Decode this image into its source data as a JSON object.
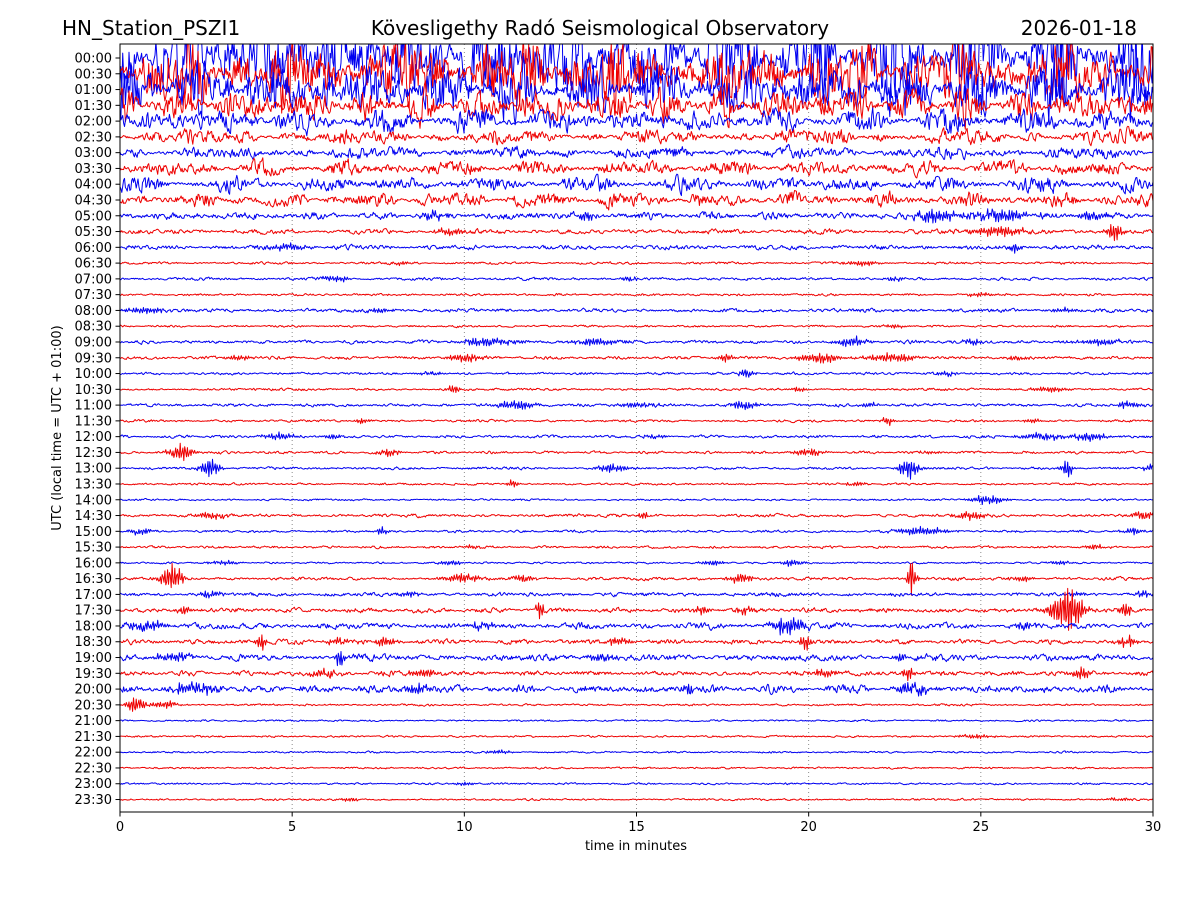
{
  "header": {
    "station_code": "HN_Station_PSZI1",
    "observatory": "Kövesligethy Radó Seismological Observatory",
    "date": "2026-01-18"
  },
  "axes": {
    "xlabel": "time in minutes",
    "ylabel": "UTC (local time = UTC + 01:00)",
    "x_ticks": [
      "0",
      "5",
      "10",
      "15",
      "20",
      "25",
      "30"
    ],
    "x_max_minutes": 30,
    "grid_minutes": [
      5,
      10,
      15,
      20,
      25
    ]
  },
  "colors": {
    "trace_blue": "#0000F0",
    "trace_red": "#EE0000",
    "grid": "#808080",
    "axis": "#000000",
    "background": "#ffffff",
    "text": "#000000"
  },
  "chart_data": {
    "type": "line",
    "subtype": "helicorder-dayplot",
    "minutes_per_line": 30,
    "lines_per_day": 48,
    "x_range_minutes": [
      0,
      30
    ],
    "rows": [
      {
        "time": "00:00",
        "color": "blue",
        "amp": 38,
        "events": []
      },
      {
        "time": "00:30",
        "color": "red",
        "amp": 30,
        "events": []
      },
      {
        "time": "01:00",
        "color": "blue",
        "amp": 24,
        "events": []
      },
      {
        "time": "01:30",
        "color": "red",
        "amp": 14,
        "events": []
      },
      {
        "time": "02:00",
        "color": "blue",
        "amp": 10,
        "events": []
      },
      {
        "time": "02:30",
        "color": "red",
        "amp": 6.5,
        "events": []
      },
      {
        "time": "03:00",
        "color": "blue",
        "amp": 5.0,
        "events": []
      },
      {
        "time": "03:30",
        "color": "red",
        "amp": 6.5,
        "events": []
      },
      {
        "time": "04:00",
        "color": "blue",
        "amp": 6.5,
        "events": []
      },
      {
        "time": "04:30",
        "color": "red",
        "amp": 6.5,
        "events": []
      },
      {
        "time": "05:00",
        "color": "blue",
        "amp": 3.2,
        "events": [
          [
            9,
            4,
            0.3
          ],
          [
            13.5,
            3,
            0.3
          ],
          [
            23.7,
            5,
            0.6
          ],
          [
            25.6,
            5,
            0.8
          ],
          [
            28.2,
            4,
            0.3
          ]
        ]
      },
      {
        "time": "05:30",
        "color": "red",
        "amp": 2.0,
        "events": [
          [
            9.6,
            3,
            0.4
          ],
          [
            25.5,
            4,
            0.8
          ],
          [
            28.9,
            9,
            0.2
          ]
        ]
      },
      {
        "time": "06:00",
        "color": "blue",
        "amp": 1.9,
        "events": [
          [
            4.8,
            3,
            0.5
          ],
          [
            26,
            4,
            0.15
          ]
        ]
      },
      {
        "time": "06:30",
        "color": "red",
        "amp": 1.0,
        "events": [
          [
            8.2,
            1.5,
            0.3
          ],
          [
            21.5,
            2,
            0.5
          ]
        ]
      },
      {
        "time": "07:00",
        "color": "blue",
        "amp": 1.2,
        "events": [
          [
            6.3,
            2.5,
            0.4
          ],
          [
            14.8,
            1.5,
            0.3
          ],
          [
            22.5,
            1.5,
            0.3
          ]
        ]
      },
      {
        "time": "07:30",
        "color": "red",
        "amp": 1.0,
        "events": [
          [
            25,
            1.5,
            0.4
          ]
        ]
      },
      {
        "time": "08:00",
        "color": "blue",
        "amp": 1.5,
        "events": [
          [
            0.8,
            2.5,
            0.6
          ],
          [
            7.5,
            2,
            0.4
          ],
          [
            27.5,
            2,
            0.4
          ]
        ]
      },
      {
        "time": "08:30",
        "color": "red",
        "amp": 0.9,
        "events": [
          [
            22.5,
            1.5,
            0.3
          ]
        ]
      },
      {
        "time": "09:00",
        "color": "blue",
        "amp": 1.4,
        "events": [
          [
            10.8,
            3.5,
            0.8
          ],
          [
            13.8,
            3,
            0.6
          ],
          [
            21.3,
            3.5,
            0.5
          ],
          [
            24.8,
            2.5,
            0.3
          ],
          [
            28.5,
            3,
            0.5
          ]
        ]
      },
      {
        "time": "09:30",
        "color": "red",
        "amp": 1.3,
        "events": [
          [
            3.5,
            2,
            0.4
          ],
          [
            10,
            3,
            0.5
          ],
          [
            17.6,
            3.5,
            0.2
          ],
          [
            20.3,
            4,
            0.6
          ],
          [
            22.4,
            4,
            0.7
          ],
          [
            26,
            2,
            0.3
          ]
        ]
      },
      {
        "time": "10:00",
        "color": "blue",
        "amp": 1.1,
        "events": [
          [
            9,
            1.5,
            0.3
          ],
          [
            18.2,
            3.5,
            0.2
          ],
          [
            24,
            2,
            0.3
          ]
        ]
      },
      {
        "time": "10:30",
        "color": "red",
        "amp": 1.0,
        "events": [
          [
            9.7,
            3.5,
            0.2
          ],
          [
            19.7,
            2.5,
            0.2
          ],
          [
            27,
            2.5,
            0.5
          ]
        ]
      },
      {
        "time": "11:00",
        "color": "blue",
        "amp": 1.3,
        "events": [
          [
            11.5,
            3.5,
            0.55
          ],
          [
            15,
            2,
            0.5
          ],
          [
            18.1,
            4,
            0.35
          ],
          [
            21.8,
            2,
            0.3
          ],
          [
            29.3,
            3,
            0.4
          ]
        ]
      },
      {
        "time": "11:30",
        "color": "red",
        "amp": 1.0,
        "events": [
          [
            7,
            2.5,
            0.2
          ],
          [
            22.3,
            4,
            0.15
          ],
          [
            26.5,
            1.5,
            0.3
          ]
        ]
      },
      {
        "time": "12:00",
        "color": "blue",
        "amp": 1.2,
        "events": [
          [
            4.6,
            2.5,
            0.5
          ],
          [
            6.2,
            2,
            0.3
          ],
          [
            15.5,
            2,
            0.3
          ],
          [
            26.8,
            2.5,
            0.8
          ],
          [
            28.2,
            3.5,
            0.4
          ]
        ]
      },
      {
        "time": "12:30",
        "color": "red",
        "amp": 1.1,
        "events": [
          [
            1.8,
            7,
            0.35
          ],
          [
            7.8,
            3,
            0.3
          ],
          [
            20,
            3,
            0.4
          ],
          [
            23.5,
            1.5,
            0.3
          ]
        ]
      },
      {
        "time": "13:00",
        "color": "blue",
        "amp": 1.1,
        "events": [
          [
            2.6,
            7,
            0.3
          ],
          [
            14.3,
            3.5,
            0.5
          ],
          [
            22.9,
            8,
            0.3
          ],
          [
            27.5,
            8,
            0.15
          ],
          [
            29.9,
            3,
            0.2
          ]
        ]
      },
      {
        "time": "13:30",
        "color": "red",
        "amp": 0.9,
        "events": [
          [
            11.4,
            3,
            0.15
          ],
          [
            21.4,
            2,
            0.3
          ]
        ]
      },
      {
        "time": "14:00",
        "color": "blue",
        "amp": 0.8,
        "events": [
          [
            25.2,
            3.5,
            0.5
          ]
        ]
      },
      {
        "time": "14:30",
        "color": "red",
        "amp": 1.3,
        "events": [
          [
            2.6,
            2.5,
            0.5
          ],
          [
            15.2,
            3.5,
            0.15
          ],
          [
            24.7,
            3.5,
            0.4
          ],
          [
            29.7,
            3.5,
            0.3
          ]
        ]
      },
      {
        "time": "15:00",
        "color": "blue",
        "amp": 1.0,
        "events": [
          [
            0.6,
            2.5,
            0.4
          ],
          [
            7.6,
            3.5,
            0.15
          ],
          [
            23.3,
            3.5,
            0.7
          ],
          [
            29.4,
            2.5,
            0.3
          ]
        ]
      },
      {
        "time": "15:30",
        "color": "red",
        "amp": 1.0,
        "events": [
          [
            10.2,
            1.5,
            0.3
          ],
          [
            28.3,
            2.5,
            0.3
          ]
        ]
      },
      {
        "time": "16:00",
        "color": "blue",
        "amp": 0.8,
        "events": [
          [
            3,
            2,
            0.4
          ],
          [
            9.6,
            2,
            0.3
          ],
          [
            17.2,
            2.5,
            0.3
          ],
          [
            19.5,
            2.5,
            0.3
          ],
          [
            27.3,
            1.5,
            0.3
          ]
        ]
      },
      {
        "time": "16:30",
        "color": "red",
        "amp": 1.3,
        "events": [
          [
            1.5,
            12,
            0.3
          ],
          [
            9.9,
            3.5,
            0.5
          ],
          [
            11.7,
            3.5,
            0.3
          ],
          [
            18,
            3.5,
            0.4
          ],
          [
            23,
            16,
            0.12
          ],
          [
            26.2,
            2.5,
            0.3
          ]
        ]
      },
      {
        "time": "17:00",
        "color": "blue",
        "amp": 1.6,
        "events": [
          [
            2.6,
            2.5,
            0.4
          ],
          [
            8.4,
            2,
            0.3
          ],
          [
            27.9,
            2,
            0.3
          ],
          [
            29.7,
            3.5,
            0.2
          ]
        ]
      },
      {
        "time": "17:30",
        "color": "red",
        "amp": 2.0,
        "events": [
          [
            1.9,
            4,
            0.2
          ],
          [
            12.2,
            7,
            0.12
          ],
          [
            16.9,
            3.5,
            0.2
          ],
          [
            18.1,
            3,
            0.3
          ],
          [
            27.5,
            20,
            0.45
          ],
          [
            29.2,
            5,
            0.2
          ]
        ]
      },
      {
        "time": "18:00",
        "color": "blue",
        "amp": 2.6,
        "events": [
          [
            0.8,
            4,
            0.5
          ],
          [
            10.5,
            3,
            0.4
          ],
          [
            19.4,
            8,
            0.45
          ],
          [
            26.2,
            3,
            0.3
          ]
        ]
      },
      {
        "time": "18:30",
        "color": "red",
        "amp": 2.0,
        "events": [
          [
            4.1,
            7,
            0.15
          ],
          [
            6.3,
            3,
            0.3
          ],
          [
            7.7,
            4,
            0.3
          ],
          [
            14.5,
            3,
            0.4
          ],
          [
            19.9,
            6,
            0.15
          ],
          [
            29.3,
            5,
            0.3
          ]
        ]
      },
      {
        "time": "19:00",
        "color": "blue",
        "amp": 2.8,
        "events": [
          [
            1.5,
            4,
            0.5
          ],
          [
            6.4,
            8,
            0.15
          ],
          [
            14,
            3,
            0.5
          ],
          [
            22.7,
            4,
            0.2
          ]
        ]
      },
      {
        "time": "19:30",
        "color": "red",
        "amp": 2.1,
        "events": [
          [
            5.9,
            3.5,
            0.4
          ],
          [
            8.8,
            3.5,
            0.4
          ],
          [
            20.5,
            3,
            0.5
          ],
          [
            22.9,
            6,
            0.15
          ],
          [
            27.9,
            5,
            0.3
          ]
        ]
      },
      {
        "time": "20:00",
        "color": "blue",
        "amp": 3.4,
        "events": [
          [
            2.2,
            5,
            0.7
          ],
          [
            8.6,
            5,
            0.3
          ],
          [
            16.5,
            5,
            0.2
          ],
          [
            23,
            4,
            0.5
          ]
        ]
      },
      {
        "time": "20:30",
        "color": "red",
        "amp": 0.9,
        "events": [
          [
            0.45,
            7,
            0.25
          ],
          [
            1.3,
            3,
            0.4
          ]
        ]
      },
      {
        "time": "21:00",
        "color": "blue",
        "amp": 0.75,
        "events": []
      },
      {
        "time": "21:30",
        "color": "red",
        "amp": 0.8,
        "events": [
          [
            24.8,
            1.8,
            0.5
          ]
        ]
      },
      {
        "time": "22:00",
        "color": "blue",
        "amp": 0.8,
        "events": [
          [
            11,
            1.2,
            0.4
          ]
        ]
      },
      {
        "time": "22:30",
        "color": "red",
        "amp": 0.8,
        "events": []
      },
      {
        "time": "23:00",
        "color": "blue",
        "amp": 0.8,
        "events": [
          [
            10,
            1.2,
            0.3
          ]
        ]
      },
      {
        "time": "23:30",
        "color": "red",
        "amp": 0.8,
        "events": [
          [
            6.7,
            1.5,
            0.3
          ],
          [
            29,
            1.5,
            0.3
          ]
        ]
      }
    ]
  }
}
